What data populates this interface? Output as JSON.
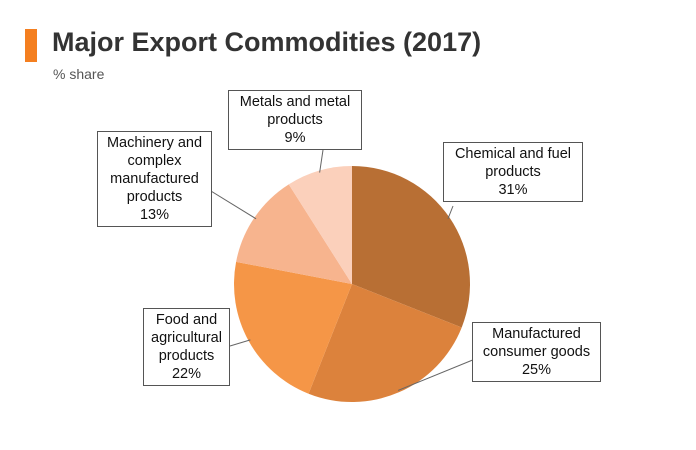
{
  "header": {
    "title": "Major Export Commodities (2017)",
    "subtitle": "% share",
    "accent_color": "#f47f20"
  },
  "chart_data": {
    "type": "pie",
    "title": "Major Export Commodities (2017)",
    "subtitle": "% share",
    "unit": "%",
    "start": "12 o'clock, clockwise",
    "slices": [
      {
        "label": "Chemical and fuel products",
        "value": 31,
        "value_text": "31%",
        "color": "#b86f34"
      },
      {
        "label": "Manufactured consumer goods",
        "value": 25,
        "value_text": "25%",
        "color": "#dc823c"
      },
      {
        "label": "Food and agricultural products",
        "value": 22,
        "value_text": "22%",
        "color": "#f59647"
      },
      {
        "label": "Machinery and complex manufactured products",
        "value": 13,
        "value_text": "13%",
        "color": "#f7b48e"
      },
      {
        "label": "Metals and metal products",
        "value": 9,
        "value_text": "9%",
        "color": "#fbd0bb"
      }
    ]
  }
}
